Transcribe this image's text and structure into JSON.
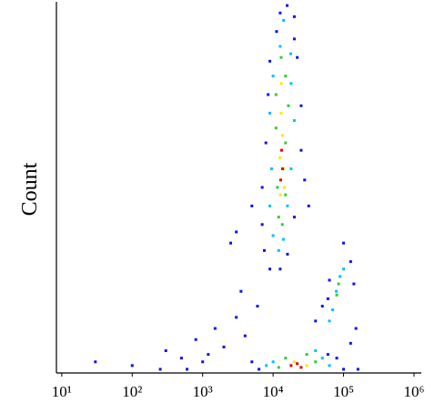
{
  "chart_data": {
    "type": "scatter",
    "y_label": "Count",
    "xscale": "log",
    "xlim": [
      8.4,
      1270000
    ],
    "ylim": [
      0,
      100
    ],
    "xticks": [
      {
        "value": 10,
        "label": "10¹"
      },
      {
        "value": 100,
        "label": "10²"
      },
      {
        "value": 1000,
        "label": "10³"
      },
      {
        "value": 10000,
        "label": "10⁴"
      },
      {
        "value": 100000,
        "label": "10⁵"
      },
      {
        "value": 1000000,
        "label": "10⁶"
      }
    ],
    "series": [
      {
        "color": "#1010ee",
        "x": [
          12600,
          15800,
          20000,
          11200,
          20000,
          9000,
          22000,
          8500,
          25000,
          7900,
          25000,
          7000,
          28000,
          7000,
          20000,
          7500,
          16000,
          9000,
          12600,
          32000,
          5000,
          3000,
          2500,
          63000,
          126000,
          100000,
          60000,
          140000,
          150000,
          126000,
          40000,
          50000,
          5000,
          6300,
          60000,
          80000,
          160000,
          100000,
          30,
          100,
          300,
          500,
          800,
          1000,
          1500,
          2000,
          3000,
          4000,
          1200,
          600,
          250,
          3500,
          6000
        ],
        "values": [
          97,
          99,
          96,
          92,
          90,
          84,
          85,
          75,
          72,
          62,
          60,
          50,
          52,
          40,
          42,
          33,
          32,
          28,
          28,
          45,
          45,
          38,
          35,
          25,
          30,
          35,
          20,
          24,
          12,
          8,
          14,
          18,
          3,
          1,
          5,
          4,
          1,
          1,
          3,
          2,
          6,
          4,
          9,
          3,
          12,
          7,
          15,
          10,
          5,
          1,
          1,
          22,
          18
        ]
      },
      {
        "color": "#00bfff",
        "x": [
          14100,
          12600,
          17800,
          10000,
          18000,
          9000,
          20000,
          9500,
          18000,
          9000,
          16000,
          10000,
          14000,
          12000,
          79000,
          89000,
          70000,
          100000,
          63000,
          10000,
          40000,
          50000,
          8000,
          63000
        ],
        "values": [
          95,
          88,
          86,
          80,
          78,
          70,
          68,
          55,
          55,
          45,
          45,
          37,
          36,
          33,
          22,
          26,
          17,
          28,
          14,
          3,
          6,
          4,
          2,
          2
        ]
      },
      {
        "color": "#33cc33",
        "x": [
          13000,
          15000,
          11000,
          16500,
          11000,
          15000,
          11500,
          15000,
          12000,
          13500,
          80000,
          85000,
          15000,
          30000,
          12000,
          40000
        ],
        "values": [
          85,
          80,
          75,
          72,
          66,
          62,
          50,
          48,
          42,
          40,
          21,
          24,
          4,
          5,
          1.5,
          3
        ]
      },
      {
        "color": "#ffe600",
        "x": [
          13000,
          13500,
          12500,
          14000,
          12700,
          14500,
          13000,
          20000,
          30000
        ],
        "values": [
          70,
          64,
          58,
          55,
          48,
          50,
          78,
          3,
          2
        ]
      },
      {
        "color": "#e00000",
        "x": [
          13200,
          13600,
          12800,
          18000,
          22000,
          25000
        ],
        "values": [
          60,
          55,
          52,
          2,
          2.5,
          1.5
        ]
      }
    ]
  }
}
